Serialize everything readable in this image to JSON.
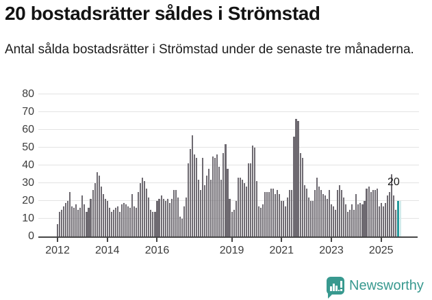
{
  "title": "20 bostadsrätter såldes i Strömstad",
  "subtitle": "Antal sålda bostadsrätter i Strömstad under de senaste tre månaderna.",
  "annotation_label": "20",
  "brand": {
    "name": "Newsworthy"
  },
  "colors": {
    "bar": "#6e6a71",
    "highlight": "#259a9c",
    "partial": "#cfeaea",
    "grid": "#e3e3e3",
    "axis": "#454545",
    "tick_text": "#3b3b3b",
    "brand_teal": "#38998f"
  },
  "chart_data": {
    "type": "bar",
    "title": "20 bostadsrätter såldes i Strömstad",
    "xlabel": "",
    "ylabel": "",
    "ylim": [
      0,
      80
    ],
    "yticks": [
      0,
      10,
      20,
      30,
      40,
      50,
      60,
      70,
      80
    ],
    "xtick_labels": [
      "2012",
      "2014",
      "2016",
      "2019",
      "2021",
      "2023",
      "2025"
    ],
    "x_start": "2012-01",
    "x_end": "2025-09",
    "grid": true,
    "legend_position": "none",
    "highlight_last_value": 20,
    "partial_next_value": 20,
    "values": [
      7,
      14,
      15,
      17,
      19,
      20,
      25,
      17,
      16,
      18,
      15,
      16,
      23,
      18,
      14,
      16,
      21,
      26,
      30,
      36,
      34,
      28,
      24,
      21,
      20,
      16,
      14,
      15,
      16,
      17,
      14,
      18,
      19,
      18,
      17,
      16,
      24,
      17,
      16,
      25,
      30,
      33,
      31,
      27,
      22,
      15,
      14,
      14,
      20,
      21,
      23,
      21,
      20,
      21,
      19,
      21,
      26,
      26,
      22,
      11,
      10,
      17,
      22,
      41,
      49,
      57,
      46,
      44,
      32,
      26,
      44,
      29,
      34,
      38,
      32,
      45,
      44,
      46,
      39,
      32,
      47,
      52,
      38,
      21,
      14,
      15,
      20,
      33,
      33,
      32,
      30,
      28,
      41,
      41,
      51,
      50,
      31,
      17,
      16,
      18,
      25,
      25,
      25,
      27,
      27,
      24,
      26,
      24,
      20,
      20,
      17,
      22,
      26,
      26,
      56,
      66,
      65,
      47,
      44,
      29,
      27,
      22,
      20,
      20,
      26,
      33,
      28,
      26,
      24,
      23,
      21,
      26,
      18,
      17,
      15,
      26,
      29,
      26,
      22,
      18,
      14,
      15,
      18,
      15,
      24,
      18,
      19,
      18,
      20,
      27,
      28,
      25,
      26,
      26,
      27,
      17,
      19,
      17,
      19,
      23,
      25,
      35,
      23,
      15,
      20
    ]
  }
}
